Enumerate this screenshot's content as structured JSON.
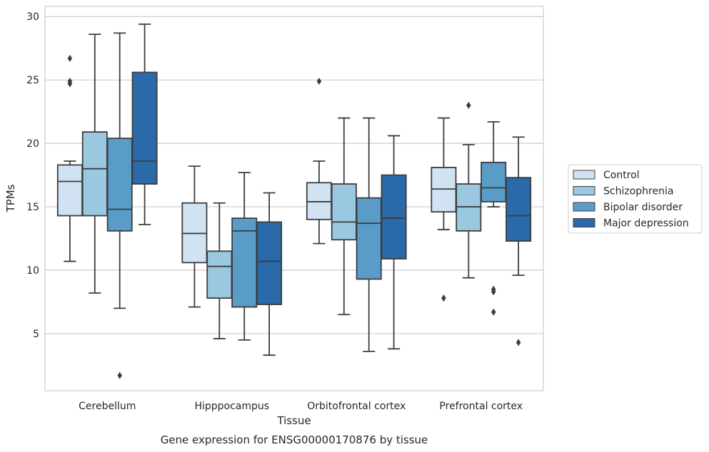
{
  "chart_data": {
    "type": "box",
    "caption": "Gene expression for ENSG00000170876 by tissue",
    "xlabel": "Tissue",
    "ylabel": "TPMs",
    "ylim": [
      0.5,
      30.8
    ],
    "yticks": [
      5,
      10,
      15,
      20,
      25,
      30
    ],
    "grid": "horizontal",
    "legend_position": "right",
    "categories": [
      "Cerebellum",
      "Hipppocampus",
      "Orbitofrontal cortex",
      "Prefrontal cortex"
    ],
    "series": [
      {
        "name": "Control",
        "color": "#d1e2f3",
        "boxes": [
          {
            "whislo": 10.7,
            "q1": 14.3,
            "med": 17.0,
            "q3": 18.3,
            "whishi": 18.6,
            "fliers": [
              26.7,
              24.9,
              24.7
            ]
          },
          {
            "whislo": 7.1,
            "q1": 10.6,
            "med": 12.9,
            "q3": 15.3,
            "whishi": 18.2,
            "fliers": []
          },
          {
            "whislo": 12.1,
            "q1": 14.0,
            "med": 15.4,
            "q3": 16.9,
            "whishi": 18.6,
            "fliers": [
              24.9
            ]
          },
          {
            "whislo": 13.2,
            "q1": 14.6,
            "med": 16.4,
            "q3": 18.1,
            "whishi": 22.0,
            "fliers": [
              7.8
            ]
          }
        ]
      },
      {
        "name": "Schizophrenia",
        "color": "#9ac8e0",
        "boxes": [
          {
            "whislo": 8.2,
            "q1": 14.3,
            "med": 18.0,
            "q3": 20.9,
            "whishi": 28.6,
            "fliers": []
          },
          {
            "whislo": 4.6,
            "q1": 7.8,
            "med": 10.3,
            "q3": 11.5,
            "whishi": 15.3,
            "fliers": []
          },
          {
            "whislo": 6.5,
            "q1": 12.4,
            "med": 13.8,
            "q3": 16.8,
            "whishi": 22.0,
            "fliers": []
          },
          {
            "whislo": 9.4,
            "q1": 13.1,
            "med": 15.0,
            "q3": 16.8,
            "whishi": 19.9,
            "fliers": [
              23.0
            ]
          }
        ]
      },
      {
        "name": "Bipolar disorder",
        "color": "#5a9cc8",
        "boxes": [
          {
            "whislo": 7.0,
            "q1": 13.1,
            "med": 14.8,
            "q3": 20.4,
            "whishi": 28.7,
            "fliers": [
              1.7
            ]
          },
          {
            "whislo": 4.5,
            "q1": 7.1,
            "med": 13.1,
            "q3": 14.1,
            "whishi": 17.7,
            "fliers": []
          },
          {
            "whislo": 3.6,
            "q1": 9.3,
            "med": 13.7,
            "q3": 15.7,
            "whishi": 22.0,
            "fliers": []
          },
          {
            "whislo": 15.0,
            "q1": 15.4,
            "med": 16.5,
            "q3": 18.5,
            "whishi": 21.7,
            "fliers": [
              8.5,
              8.3,
              6.7
            ]
          }
        ]
      },
      {
        "name": "Major depression",
        "color": "#2a6aa9",
        "boxes": [
          {
            "whislo": 13.6,
            "q1": 16.8,
            "med": 18.6,
            "q3": 25.6,
            "whishi": 29.4,
            "fliers": []
          },
          {
            "whislo": 3.3,
            "q1": 7.3,
            "med": 10.7,
            "q3": 13.8,
            "whishi": 16.1,
            "fliers": []
          },
          {
            "whislo": 3.8,
            "q1": 10.9,
            "med": 14.1,
            "q3": 17.5,
            "whishi": 20.6,
            "fliers": []
          },
          {
            "whislo": 9.6,
            "q1": 12.3,
            "med": 14.3,
            "q3": 17.3,
            "whishi": 20.5,
            "fliers": [
              4.3
            ]
          }
        ]
      }
    ]
  }
}
